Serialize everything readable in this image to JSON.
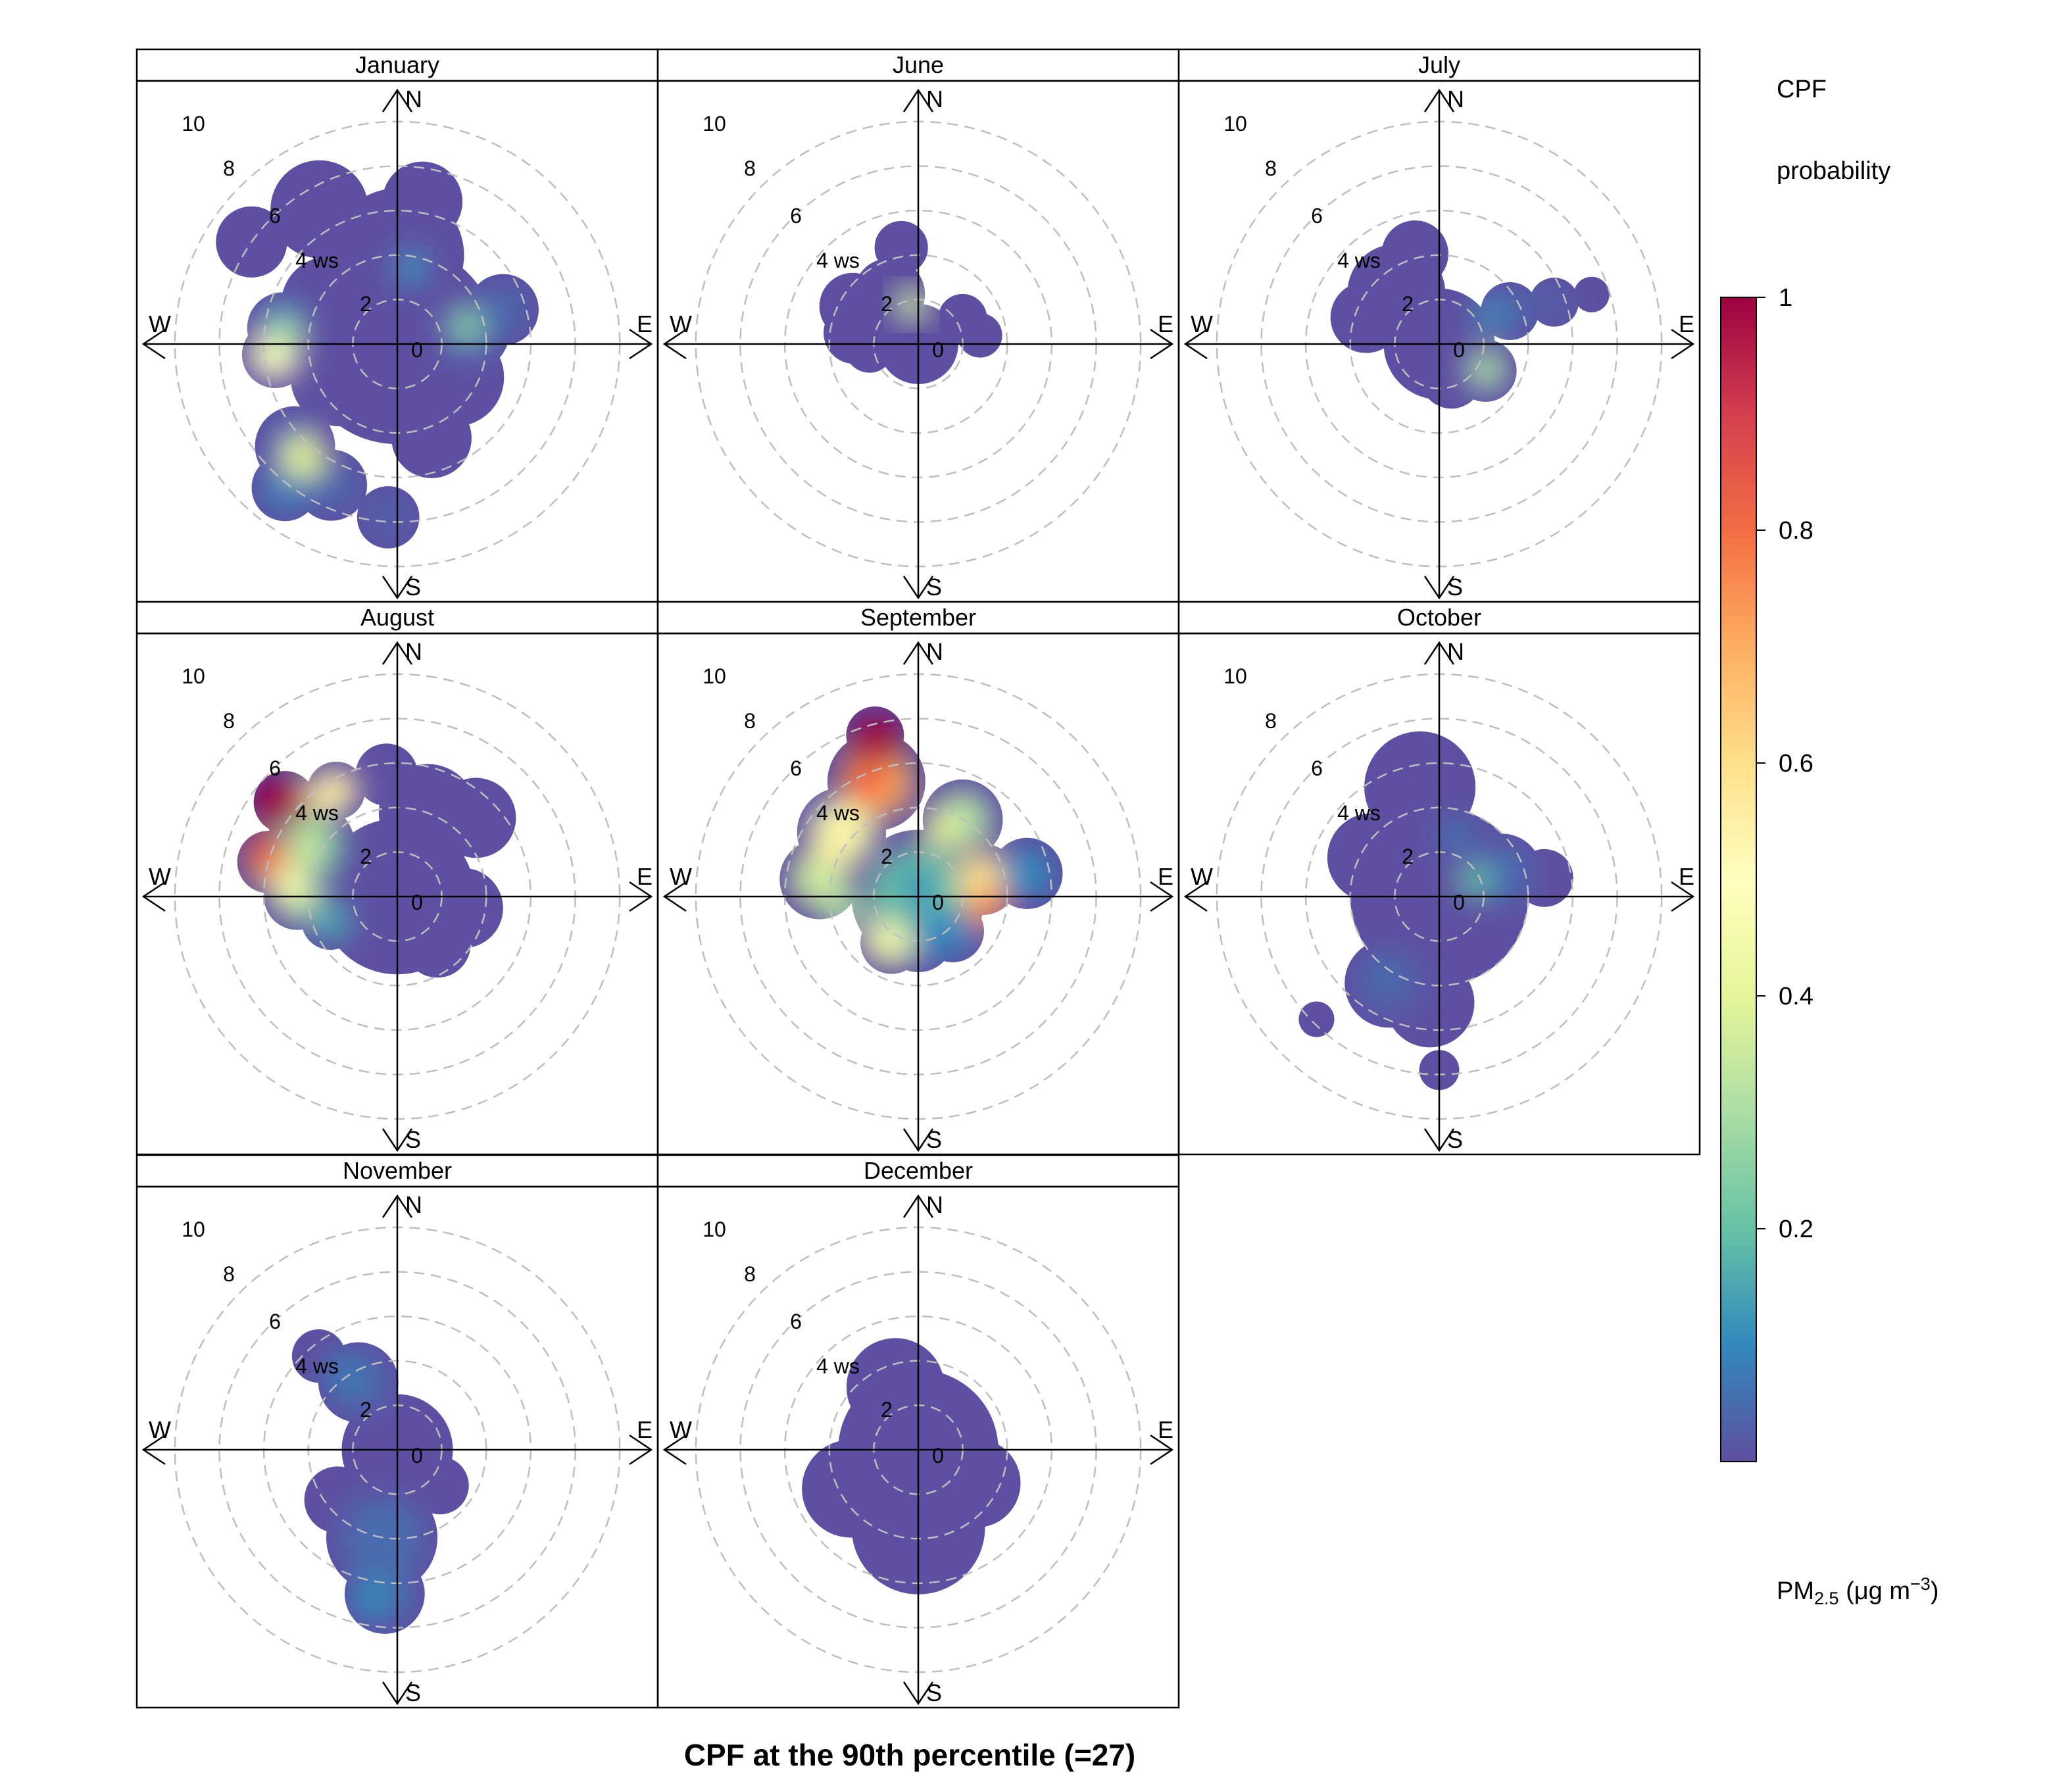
{
  "chart_data": {
    "type": "polar-cpf",
    "title": "CPF at the 90th percentile (=27)",
    "pollutant_label": "PM",
    "pollutant_subscript": "2.5",
    "units_label": "(μg m",
    "units_superscript": "−3",
    "units_close": ")",
    "key_title_line1": "CPF",
    "key_title_line2": "probability",
    "scale": {
      "min": 0,
      "max": 1,
      "ticks": [
        0.2,
        0.4,
        0.6,
        0.8,
        1
      ],
      "tick_labels": [
        "0.2",
        "0.4",
        "0.6",
        "0.8",
        "1"
      ]
    },
    "colors": [
      "#5e4fa2",
      "#3288bd",
      "#66c2a5",
      "#abdda4",
      "#e6f598",
      "#ffffbf",
      "#fee08b",
      "#fdae61",
      "#f46d43",
      "#d53e4f",
      "#9e0142"
    ],
    "radial_ticks": [
      0,
      2,
      4,
      6,
      8,
      10
    ],
    "radial_tick_labels": [
      "0",
      "2",
      "4 ws",
      "6",
      "8",
      "10"
    ],
    "ws_max": 11,
    "grid_color": "#bebebe",
    "direction_labels": {
      "n": "N",
      "e": "E",
      "s": "S",
      "w": "W"
    },
    "panels": [
      {
        "label": "January",
        "blobs": [
          {
            "dir": 0,
            "ws": 0,
            "r": 4.5,
            "v": 0.01
          },
          {
            "dir": 0,
            "ws": 4,
            "r": 3,
            "v": 0.01
          },
          {
            "dir": 330,
            "ws": 7,
            "r": 2.2,
            "v": 0.02
          },
          {
            "dir": 305,
            "ws": 8,
            "r": 1.6,
            "v": 0.02
          },
          {
            "dir": 10,
            "ws": 6.5,
            "r": 1.8,
            "v": 0.01
          },
          {
            "dir": 80,
            "ws": 3.3,
            "r": 1.8,
            "v": 0.04
          },
          {
            "dir": 72,
            "ws": 5,
            "r": 1.6,
            "v": 0.04
          },
          {
            "dir": 278,
            "ws": 5.2,
            "r": 1.6,
            "v": 0.12
          },
          {
            "dir": 265,
            "ws": 5.5,
            "r": 1.5,
            "v": 0.45
          },
          {
            "dir": 225,
            "ws": 6.5,
            "r": 1.8,
            "v": 0.05
          },
          {
            "dir": 205,
            "ws": 7,
            "r": 1.6,
            "v": 0.04
          },
          {
            "dir": 218,
            "ws": 8.2,
            "r": 1.5,
            "v": 0.08
          },
          {
            "dir": 183,
            "ws": 7.8,
            "r": 1.4,
            "v": 0.03
          },
          {
            "dir": 160,
            "ws": 4.5,
            "r": 1.8,
            "v": 0.02
          },
          {
            "dir": 120,
            "ws": 3,
            "r": 2.2,
            "v": 0.01
          },
          {
            "dir": 300,
            "ws": 3.5,
            "r": 2.2,
            "v": 0.01
          },
          {
            "dir": 240,
            "ws": 3,
            "r": 2.2,
            "v": 0.01
          }
        ],
        "hot": [
          {
            "dir": 265,
            "ws": 5.6,
            "r": 1.1,
            "v": 0.5
          },
          {
            "dir": 275,
            "ws": 5.1,
            "r": 0.8,
            "v": 0.3
          },
          {
            "dir": 220,
            "ws": 6.6,
            "r": 1.0,
            "v": 0.4
          },
          {
            "dir": 75,
            "ws": 3.2,
            "r": 0.8,
            "v": 0.25
          },
          {
            "dir": 10,
            "ws": 3.5,
            "r": 0.8,
            "v": 0.12
          }
        ]
      },
      {
        "label": "June",
        "blobs": [
          {
            "dir": 0,
            "ws": 0,
            "r": 1.8,
            "v": 0.02
          },
          {
            "dir": 330,
            "ws": 2.6,
            "r": 1.6,
            "v": 0.02
          },
          {
            "dir": 300,
            "ws": 3.4,
            "r": 1.5,
            "v": 0.01
          },
          {
            "dir": 280,
            "ws": 2.9,
            "r": 1.4,
            "v": 0.01
          },
          {
            "dir": 350,
            "ws": 4.4,
            "r": 1.2,
            "v": 0.01
          },
          {
            "dir": 60,
            "ws": 2.3,
            "r": 1.1,
            "v": 0.02
          },
          {
            "dir": 82,
            "ws": 2.8,
            "r": 1.0,
            "v": 0.01
          },
          {
            "dir": 265,
            "ws": 2.2,
            "r": 1.1,
            "v": 0.01
          }
        ],
        "hot": [
          {
            "dir": 350,
            "ws": 1.8,
            "r": 0.8,
            "v": 0.35
          }
        ]
      },
      {
        "label": "July",
        "blobs": [
          {
            "dir": 0,
            "ws": 0,
            "r": 2.5,
            "v": 0.02
          },
          {
            "dir": 320,
            "ws": 3,
            "r": 2.2,
            "v": 0.02
          },
          {
            "dir": 345,
            "ws": 4.2,
            "r": 1.5,
            "v": 0.02
          },
          {
            "dir": 290,
            "ws": 3.5,
            "r": 1.6,
            "v": 0.01
          },
          {
            "dir": 65,
            "ws": 3.5,
            "r": 1.3,
            "v": 0.05
          },
          {
            "dir": 70,
            "ws": 5.5,
            "r": 1.1,
            "v": 0.03
          },
          {
            "dir": 72,
            "ws": 7.2,
            "r": 0.8,
            "v": 0.02
          },
          {
            "dir": 120,
            "ws": 2.4,
            "r": 1.4,
            "v": 0.05
          },
          {
            "dir": 160,
            "ws": 1.6,
            "r": 1.4,
            "v": 0.02
          }
        ],
        "hot": [
          {
            "dir": 118,
            "ws": 2.4,
            "r": 0.9,
            "v": 0.3
          },
          {
            "dir": 60,
            "ws": 2.5,
            "r": 0.7,
            "v": 0.12
          }
        ]
      },
      {
        "label": "August",
        "blobs": [
          {
            "dir": 0,
            "ws": 0,
            "r": 3.5,
            "v": 0.02
          },
          {
            "dir": 20,
            "ws": 4,
            "r": 2.2,
            "v": 0.02
          },
          {
            "dir": 45,
            "ws": 5,
            "r": 1.8,
            "v": 0.01
          },
          {
            "dir": 100,
            "ws": 3,
            "r": 1.8,
            "v": 0.02
          },
          {
            "dir": 140,
            "ws": 2.8,
            "r": 1.5,
            "v": 0.01
          },
          {
            "dir": 300,
            "ws": 4.5,
            "r": 2,
            "v": 0.2
          },
          {
            "dir": 310,
            "ws": 6.6,
            "r": 1.4,
            "v": 0.95
          },
          {
            "dir": 285,
            "ws": 6,
            "r": 1.4,
            "v": 0.7
          },
          {
            "dir": 330,
            "ws": 5.5,
            "r": 1.3,
            "v": 0.55
          },
          {
            "dir": 270,
            "ws": 4.5,
            "r": 1.5,
            "v": 0.3
          },
          {
            "dir": 250,
            "ws": 3.2,
            "r": 1.3,
            "v": 0.15
          },
          {
            "dir": 355,
            "ws": 5.5,
            "r": 1.4,
            "v": 0.02
          }
        ],
        "hot": [
          {
            "dir": 308,
            "ws": 7,
            "r": 1.1,
            "v": 1.0
          },
          {
            "dir": 288,
            "ws": 6.3,
            "r": 0.9,
            "v": 0.85
          },
          {
            "dir": 325,
            "ws": 5.6,
            "r": 0.9,
            "v": 0.55
          },
          {
            "dir": 275,
            "ws": 4.8,
            "r": 0.9,
            "v": 0.45
          },
          {
            "dir": 300,
            "ws": 4.6,
            "r": 0.9,
            "v": 0.35
          }
        ]
      },
      {
        "label": "September",
        "blobs": [
          {
            "dir": 0,
            "ws": 0,
            "r": 3,
            "v": 0.2
          },
          {
            "dir": 340,
            "ws": 5.5,
            "r": 2.2,
            "v": 0.7
          },
          {
            "dir": 345,
            "ws": 7.5,
            "r": 1.3,
            "v": 0.95
          },
          {
            "dir": 310,
            "ws": 4.5,
            "r": 2,
            "v": 0.45
          },
          {
            "dir": 280,
            "ws": 4.5,
            "r": 1.8,
            "v": 0.35
          },
          {
            "dir": 30,
            "ws": 4,
            "r": 1.8,
            "v": 0.3
          },
          {
            "dir": 75,
            "ws": 3,
            "r": 1.6,
            "v": 0.6
          },
          {
            "dir": 78,
            "ws": 5,
            "r": 1.6,
            "v": 0.1
          },
          {
            "dir": 180,
            "ws": 1.8,
            "r": 1.6,
            "v": 0.1
          },
          {
            "dir": 210,
            "ws": 2.4,
            "r": 1.4,
            "v": 0.4
          },
          {
            "dir": 135,
            "ws": 2.2,
            "r": 1.4,
            "v": 0.1
          }
        ],
        "hot": [
          {
            "dir": 345,
            "ws": 7.3,
            "r": 1.2,
            "v": 1.0
          },
          {
            "dir": 335,
            "ws": 5.6,
            "r": 1.1,
            "v": 0.8
          },
          {
            "dir": 100,
            "ws": 3.1,
            "r": 0.9,
            "v": 0.75
          },
          {
            "dir": 300,
            "ws": 4.4,
            "r": 0.9,
            "v": 0.55
          },
          {
            "dir": 20,
            "ws": 3.2,
            "r": 0.9,
            "v": 0.4
          },
          {
            "dir": 220,
            "ws": 2.6,
            "r": 0.9,
            "v": 0.45
          },
          {
            "dir": 260,
            "ws": 3.5,
            "r": 0.9,
            "v": 0.3
          },
          {
            "dir": 0,
            "ws": 0.5,
            "r": 0.8,
            "v": 0.1
          }
        ]
      },
      {
        "label": "October",
        "blobs": [
          {
            "dir": 0,
            "ws": 0,
            "r": 4,
            "v": 0.02
          },
          {
            "dir": 350,
            "ws": 5,
            "r": 2.5,
            "v": 0.02
          },
          {
            "dir": 70,
            "ws": 3,
            "r": 1.8,
            "v": 0.05
          },
          {
            "dir": 80,
            "ws": 4.8,
            "r": 1.3,
            "v": 0.02
          },
          {
            "dir": 210,
            "ws": 4.5,
            "r": 2,
            "v": 0.03
          },
          {
            "dir": 185,
            "ws": 4.8,
            "r": 2,
            "v": 0.02
          },
          {
            "dir": 225,
            "ws": 7.8,
            "r": 0.8,
            "v": 0.01
          },
          {
            "dir": 180,
            "ws": 7.8,
            "r": 0.9,
            "v": 0.01
          },
          {
            "dir": 300,
            "ws": 3.5,
            "r": 2,
            "v": 0.02
          }
        ],
        "hot": [
          {
            "dir": 65,
            "ws": 1.7,
            "r": 0.8,
            "v": 0.2
          },
          {
            "dir": 15,
            "ws": 2.9,
            "r": 0.7,
            "v": 0.08
          },
          {
            "dir": 215,
            "ws": 4.2,
            "r": 0.9,
            "v": 0.05
          }
        ]
      },
      {
        "label": "November",
        "blobs": [
          {
            "dir": 0,
            "ws": 0,
            "r": 2.5,
            "v": 0.02
          },
          {
            "dir": 190,
            "ws": 4,
            "r": 2.5,
            "v": 0.05
          },
          {
            "dir": 185,
            "ws": 6.5,
            "r": 1.8,
            "v": 0.05
          },
          {
            "dir": 330,
            "ws": 3.5,
            "r": 1.8,
            "v": 0.05
          },
          {
            "dir": 320,
            "ws": 5.5,
            "r": 1.2,
            "v": 0.02
          },
          {
            "dir": 230,
            "ws": 3.5,
            "r": 1.5,
            "v": 0.02
          },
          {
            "dir": 130,
            "ws": 2.5,
            "r": 1.3,
            "v": 0.01
          }
        ],
        "hot": [
          {
            "dir": 190,
            "ws": 6.8,
            "r": 1.0,
            "v": 0.1
          },
          {
            "dir": 325,
            "ws": 4.2,
            "r": 0.9,
            "v": 0.08
          }
        ]
      },
      {
        "label": "December",
        "blobs": [
          {
            "dir": 0,
            "ws": 0,
            "r": 3.6,
            "v": 0.01
          },
          {
            "dir": 180,
            "ws": 3.5,
            "r": 3,
            "v": 0.01
          },
          {
            "dir": 340,
            "ws": 3,
            "r": 2.2,
            "v": 0.01
          },
          {
            "dir": 240,
            "ws": 3.5,
            "r": 2.2,
            "v": 0.01
          },
          {
            "dir": 120,
            "ws": 3,
            "r": 2,
            "v": 0.01
          }
        ],
        "hot": []
      }
    ]
  }
}
